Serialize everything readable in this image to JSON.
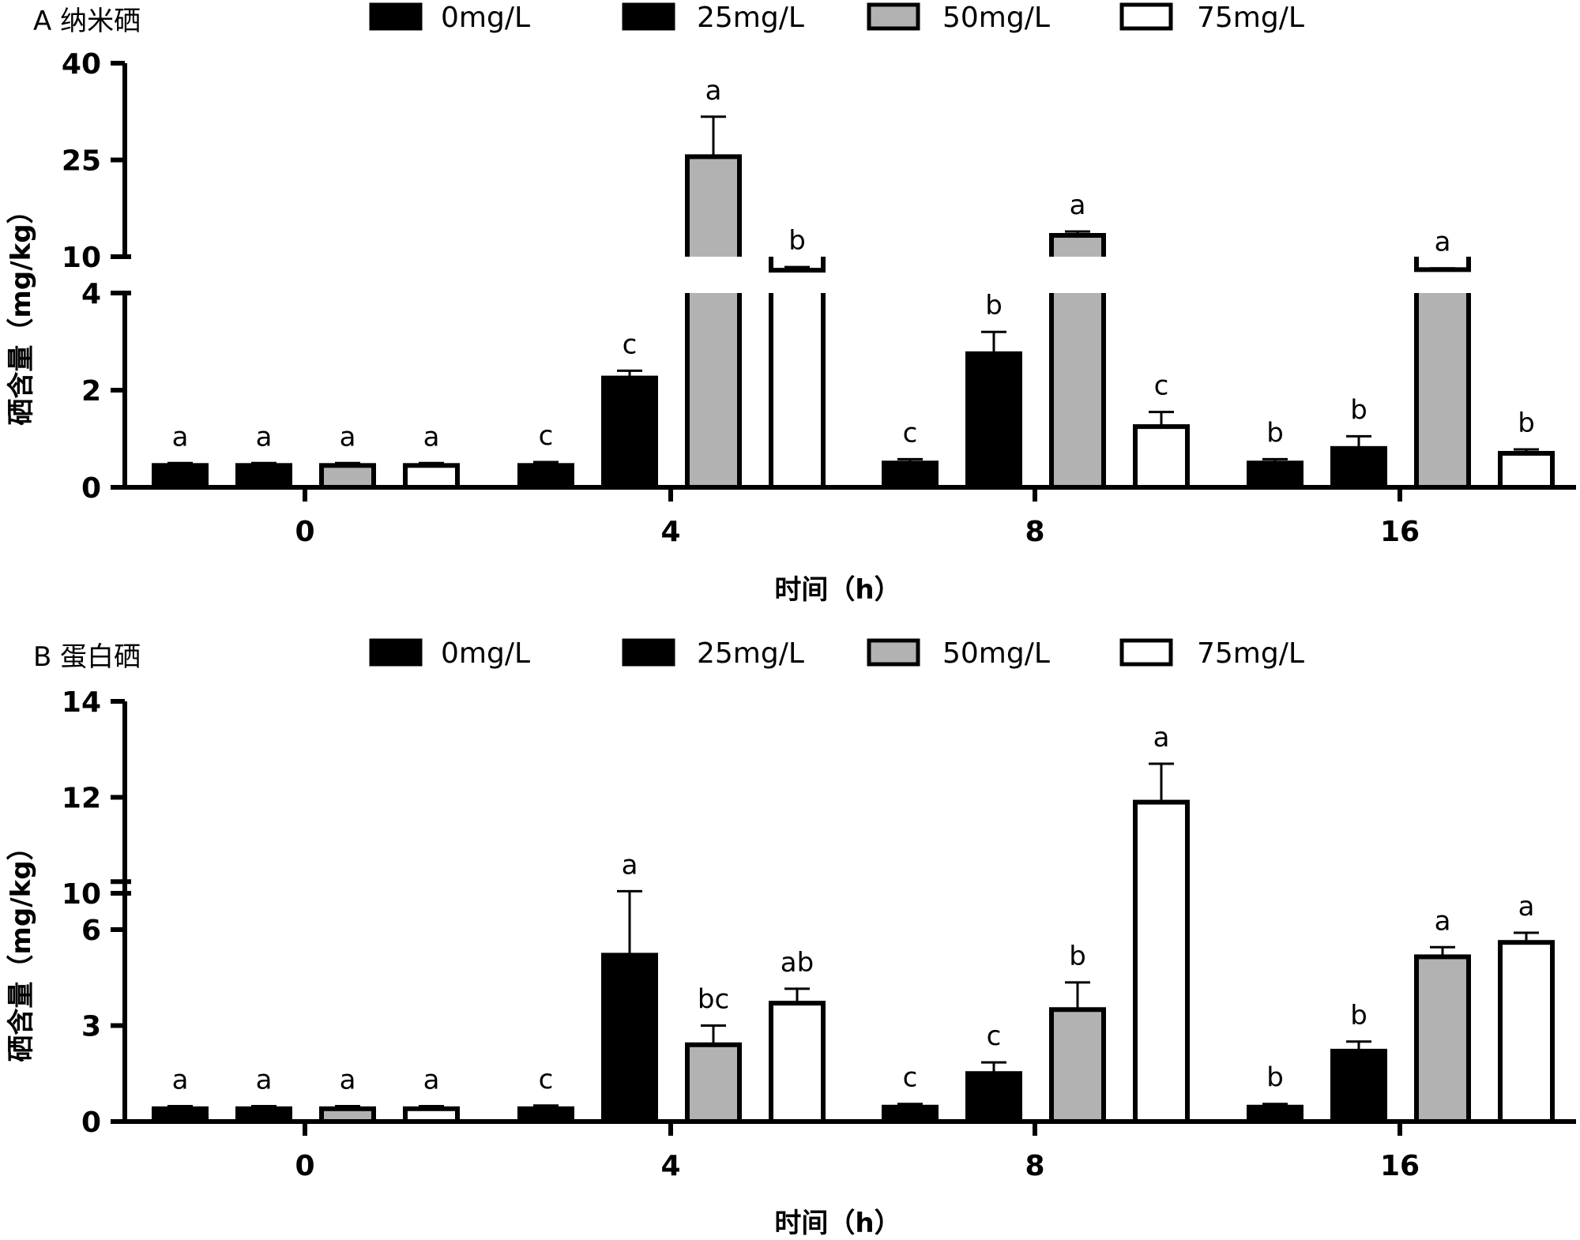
{
  "legend_items": [
    {
      "label": "0mg/L",
      "fill": "#000000"
    },
    {
      "label": "25mg/L",
      "fill": "#000000"
    },
    {
      "label": "50mg/L",
      "fill": "#b2b2b2"
    },
    {
      "label": "75mg/L",
      "fill": "#ffffff"
    }
  ],
  "chart_data": [
    {
      "type": "bar",
      "panel_title": "A 纳米硒",
      "xlabel": "时间（h）",
      "ylabel": "硒含量（mg/kg）",
      "categories": [
        "0",
        "4",
        "8",
        "16"
      ],
      "broken_y_axis": {
        "lower_segment": {
          "range": [
            0,
            4
          ],
          "ticks": [
            "0",
            "2",
            "4"
          ]
        },
        "upper_segment": {
          "range": [
            10,
            40
          ],
          "ticks": [
            "10",
            "25",
            "40"
          ]
        }
      },
      "legend_position": "top",
      "grid": false,
      "series": [
        {
          "name": "0mg/L",
          "color": "#000000",
          "values": [
            0.45,
            0.45,
            0.5,
            0.5
          ],
          "errors": [
            0.05,
            0.07,
            0.08,
            0.08
          ],
          "letters": [
            "a",
            "c",
            "c",
            "b"
          ]
        },
        {
          "name": "25mg/L",
          "color": "#000000",
          "values": [
            0.45,
            2.25,
            2.75,
            0.8
          ],
          "errors": [
            0.05,
            0.15,
            0.45,
            0.25
          ],
          "letters": [
            "a",
            "c",
            "b",
            "b"
          ]
        },
        {
          "name": "50mg/L",
          "color": "#b2b2b2",
          "values": [
            0.45,
            25.5,
            13.3,
            8.0
          ],
          "errors": [
            0.05,
            6.2,
            0.6,
            0.2
          ],
          "letters": [
            "a",
            "a",
            "a",
            "a"
          ]
        },
        {
          "name": "75mg/L",
          "color": "#ffffff",
          "values": [
            0.45,
            7.9,
            1.25,
            0.7
          ],
          "errors": [
            0.05,
            0.5,
            0.3,
            0.08
          ],
          "letters": [
            "a",
            "b",
            "c",
            "b"
          ]
        }
      ]
    },
    {
      "type": "bar",
      "panel_title": "B 蛋白硒",
      "xlabel": "时间（h）",
      "ylabel": "硒含量（mg/kg）",
      "categories": [
        "0",
        "4",
        "8",
        "16"
      ],
      "broken_y_axis": {
        "lower_segment": {
          "range": [
            0,
            7.5
          ],
          "ticks": [
            "0",
            "3",
            "6"
          ]
        },
        "upper_segment": {
          "range": [
            10,
            14
          ],
          "ticks": [
            "10",
            "12",
            "14"
          ]
        }
      },
      "legend_position": "top",
      "grid": false,
      "series": [
        {
          "name": "0mg/L",
          "color": "#000000",
          "values": [
            0.4,
            0.4,
            0.45,
            0.45
          ],
          "errors": [
            0.08,
            0.1,
            0.1,
            0.1
          ],
          "letters": [
            "a",
            "c",
            "c",
            "b"
          ]
        },
        {
          "name": "25mg/L",
          "color": "#000000",
          "values": [
            0.4,
            5.2,
            1.5,
            2.2
          ],
          "errors": [
            0.08,
            2.0,
            0.35,
            0.3
          ],
          "letters": [
            "a",
            "a",
            "c",
            "b"
          ]
        },
        {
          "name": "50mg/L",
          "color": "#b2b2b2",
          "values": [
            0.4,
            2.4,
            3.5,
            5.15
          ],
          "errors": [
            0.08,
            0.6,
            0.85,
            0.3
          ],
          "letters": [
            "a",
            "bc",
            "b",
            "a"
          ]
        },
        {
          "name": "75mg/L",
          "color": "#ffffff",
          "values": [
            0.4,
            3.7,
            11.9,
            5.6
          ],
          "errors": [
            0.08,
            0.45,
            0.8,
            0.3
          ],
          "letters": [
            "a",
            "ab",
            "a",
            "a"
          ]
        }
      ]
    }
  ]
}
